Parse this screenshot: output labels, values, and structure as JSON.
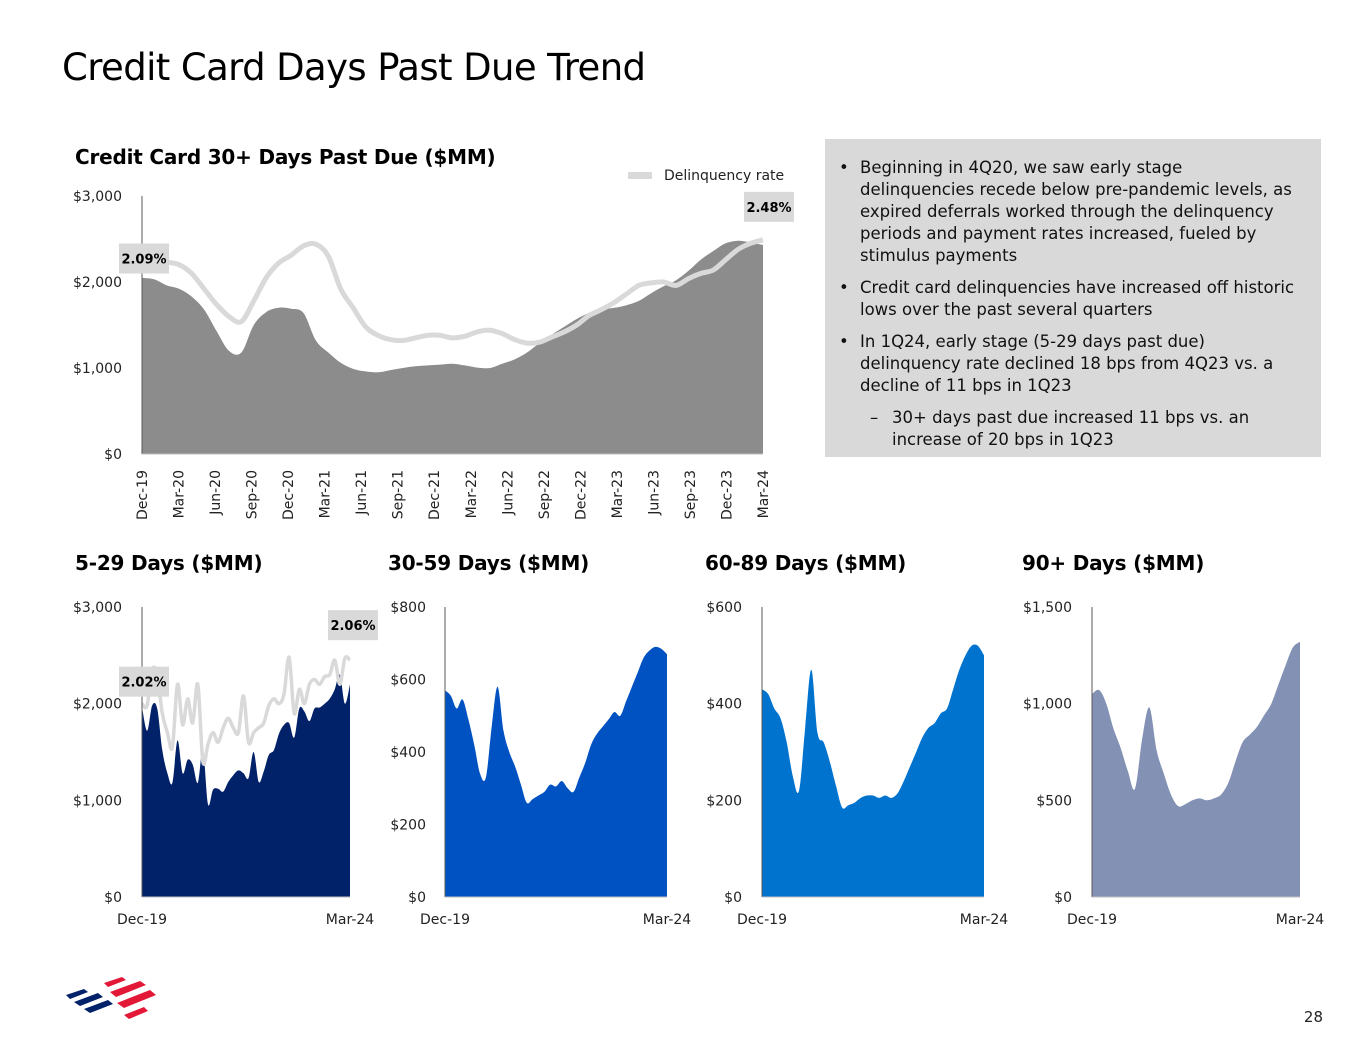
{
  "page": {
    "title": "Credit Card Days Past Due Trend",
    "page_number": "28"
  },
  "notes": {
    "bullets": [
      {
        "text": "Beginning in 4Q20, we saw early stage delinquencies recede below pre-pandemic levels, as expired deferrals worked through the delinquency periods and payment rates increased, fueled by stimulus payments",
        "level": 1,
        "marker": "•"
      },
      {
        "text": "Credit card delinquencies have increased off historic lows over the past several quarters",
        "level": 1,
        "marker": "•"
      },
      {
        "text": "In 1Q24, early stage (5-29 days past due) delinquency rate declined 18 bps from 4Q23 vs. a decline of 11 bps in 1Q23",
        "level": 1,
        "marker": "•"
      },
      {
        "text": "30+ days past due increased 11 bps vs. an increase of 20 bps in 1Q23",
        "level": 2,
        "marker": "–"
      }
    ]
  },
  "colors": {
    "main_area": "#8c8c8c",
    "rate_line": "#d9d9d9",
    "label_box": "#d9d9d9",
    "d5_29": "#012169",
    "d30_59": "#0052c2",
    "d60_89": "#0073cf",
    "d90": "#8291b4",
    "axis": "#595959",
    "logo_red": "#e31837",
    "logo_blue": "#012169"
  },
  "chart_data": [
    {
      "id": "main",
      "type": "area",
      "title": "Credit Card 30+ Days Past Due ($MM)",
      "legend": "Delinquency rate",
      "ylim": [
        0,
        3000
      ],
      "yticks": [
        {
          "v": 0,
          "label": "$0"
        },
        {
          "v": 1000,
          "label": "$1,000"
        },
        {
          "v": 2000,
          "label": "$2,000"
        },
        {
          "v": 3000,
          "label": "$3,000"
        }
      ],
      "xticks": [
        "Dec-19",
        "Mar-20",
        "Jun-20",
        "Sep-20",
        "Dec-20",
        "Mar-21",
        "Jun-21",
        "Sep-21",
        "Dec-21",
        "Mar-22",
        "Jun-22",
        "Sep-22",
        "Dec-22",
        "Mar-23",
        "Jun-23",
        "Sep-23",
        "Dec-23",
        "Mar-24"
      ],
      "values": [
        2050,
        2030,
        1960,
        1920,
        1830,
        1680,
        1430,
        1200,
        1180,
        1500,
        1650,
        1700,
        1690,
        1640,
        1320,
        1180,
        1060,
        990,
        960,
        950,
        975,
        1000,
        1020,
        1030,
        1040,
        1050,
        1030,
        1005,
        1000,
        1050,
        1100,
        1180,
        1290,
        1390,
        1480,
        1570,
        1640,
        1680,
        1700,
        1730,
        1780,
        1870,
        1950,
        2020,
        2130,
        2260,
        2360,
        2450,
        2480,
        2460,
        2430
      ],
      "rate_values": [
        2250,
        2240,
        2230,
        2200,
        2100,
        1920,
        1740,
        1600,
        1540,
        1780,
        2050,
        2220,
        2310,
        2420,
        2440,
        2300,
        1920,
        1700,
        1480,
        1380,
        1330,
        1320,
        1350,
        1380,
        1380,
        1350,
        1370,
        1420,
        1440,
        1400,
        1330,
        1290,
        1300,
        1360,
        1420,
        1500,
        1610,
        1680,
        1760,
        1860,
        1960,
        1990,
        2000,
        1960,
        2040,
        2100,
        2140,
        2260,
        2380,
        2450,
        2490
      ],
      "start_label": "2.09%",
      "end_label": "2.48%"
    },
    {
      "id": "d5_29",
      "type": "area",
      "title": "5-29 Days ($MM)",
      "ylim": [
        0,
        3000
      ],
      "yticks": [
        {
          "v": 0,
          "label": "$0"
        },
        {
          "v": 1000,
          "label": "$1,000"
        },
        {
          "v": 2000,
          "label": "$2,000"
        },
        {
          "v": 3000,
          "label": "$3,000"
        }
      ],
      "xticks": [
        "Dec-19",
        "Mar-24"
      ],
      "values": [
        1970,
        1720,
        1980,
        1950,
        1520,
        1280,
        1180,
        1620,
        1280,
        1420,
        1370,
        1180,
        1520,
        960,
        1110,
        1120,
        1090,
        1190,
        1260,
        1310,
        1280,
        1230,
        1500,
        1190,
        1300,
        1470,
        1520,
        1690,
        1780,
        1800,
        1650,
        1950,
        1920,
        1820,
        1950,
        1960,
        2000,
        2050,
        2150,
        2300,
        2000,
        2200
      ],
      "rate_values": [
        2000,
        1980,
        2350,
        2300,
        1900,
        1700,
        1550,
        2200,
        1780,
        2050,
        1800,
        2200,
        1400,
        1580,
        1700,
        1600,
        1750,
        1850,
        1750,
        1700,
        2080,
        1600,
        1700,
        1750,
        1800,
        1980,
        2050,
        2000,
        2100,
        2480,
        1900,
        2150,
        2000,
        2200,
        2250,
        2200,
        2280,
        2300,
        2450,
        2200,
        2470,
        2450
      ],
      "start_label": "2.02%",
      "end_label": "2.06%"
    },
    {
      "id": "d30_59",
      "type": "area",
      "title": "30-59 Days ($MM)",
      "ylim": [
        0,
        800
      ],
      "yticks": [
        {
          "v": 0,
          "label": "$0"
        },
        {
          "v": 200,
          "label": "$200"
        },
        {
          "v": 400,
          "label": "$400"
        },
        {
          "v": 600,
          "label": "$600"
        },
        {
          "v": 800,
          "label": "$800"
        }
      ],
      "xticks": [
        "Dec-19",
        "Mar-24"
      ],
      "values": [
        570,
        555,
        520,
        545,
        490,
        420,
        340,
        330,
        470,
        580,
        460,
        400,
        360,
        310,
        260,
        270,
        280,
        290,
        310,
        305,
        320,
        300,
        290,
        330,
        370,
        420,
        450,
        470,
        490,
        510,
        500,
        540,
        580,
        620,
        660,
        680,
        690,
        685,
        670
      ]
    },
    {
      "id": "d60_89",
      "type": "area",
      "title": "60-89 Days ($MM)",
      "ylim": [
        0,
        600
      ],
      "yticks": [
        {
          "v": 0,
          "label": "$0"
        },
        {
          "v": 200,
          "label": "$200"
        },
        {
          "v": 400,
          "label": "$400"
        },
        {
          "v": 600,
          "label": "$600"
        }
      ],
      "xticks": [
        "Dec-19",
        "Mar-24"
      ],
      "values": [
        430,
        420,
        390,
        370,
        320,
        250,
        220,
        350,
        470,
        340,
        320,
        280,
        230,
        185,
        190,
        195,
        205,
        210,
        210,
        205,
        210,
        205,
        215,
        240,
        270,
        300,
        330,
        350,
        360,
        380,
        390,
        430,
        470,
        500,
        520,
        520,
        500
      ]
    },
    {
      "id": "d90",
      "type": "area",
      "title": "90+ Days ($MM)",
      "ylim": [
        0,
        1500
      ],
      "yticks": [
        {
          "v": 0,
          "label": "$0"
        },
        {
          "v": 500,
          "label": "$500"
        },
        {
          "v": 1000,
          "label": "$1,000"
        },
        {
          "v": 1500,
          "label": "$1,500"
        }
      ],
      "xticks": [
        "Dec-19",
        "Mar-24"
      ],
      "values": [
        1050,
        1070,
        1000,
        870,
        770,
        650,
        560,
        820,
        980,
        760,
        640,
        530,
        470,
        480,
        500,
        510,
        500,
        510,
        530,
        590,
        700,
        800,
        840,
        880,
        940,
        1000,
        1100,
        1200,
        1290,
        1320
      ]
    }
  ]
}
